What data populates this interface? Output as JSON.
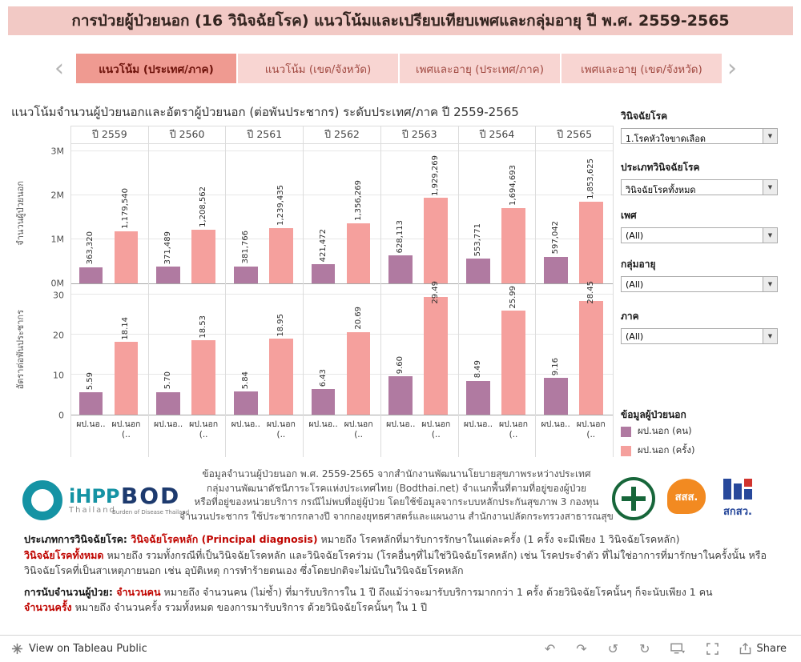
{
  "header": {
    "title": "การป่วยผู้ป่วยนอก (16 วินิจฉัยโรค) แนวโน้มและเปรียบเทียบเพศและกลุ่มอายุ ปี พ.ศ. 2559-2565"
  },
  "tabs": [
    {
      "name": "tab-trend-country",
      "label": "แนวโน้ม (ประเทศ/ภาค)",
      "active": true
    },
    {
      "name": "tab-trend-province",
      "label": "แนวโน้ม (เขต/จังหวัด)",
      "active": false
    },
    {
      "name": "tab-sex-age-country",
      "label": "เพศและอายุ (ประเทศ/ภาค)",
      "active": false
    },
    {
      "name": "tab-sex-age-province",
      "label": "เพศและอายุ (เขต/จังหวัด)",
      "active": false
    }
  ],
  "chart": {
    "title": "แนวโน้มจำนวนผู้ป่วยนอกและอัตราผู้ป่วยนอก (ต่อพันประชากร) ระดับประเทศ/ภาค ปี 2559-2565"
  },
  "chart_data": {
    "type": "bar",
    "categories": [
      "ปี 2559",
      "ปี 2560",
      "ปี 2561",
      "ปี 2562",
      "ปี 2563",
      "ปี 2564",
      "ปี 2565"
    ],
    "x_sublabels": [
      "ผป.นอ..",
      "ผป.นอก (.."
    ],
    "legend_position": "right",
    "grid": true,
    "panels": [
      {
        "ylabel": "จำนวนผู้ป่วยนอก",
        "yticks": [
          "3M",
          "2M",
          "1M",
          "0M"
        ],
        "ylim": [
          0,
          3000000
        ],
        "series": [
          {
            "name": "ผป.นอก (คน)",
            "values": [
              363320,
              371489,
              381766,
              421472,
              628113,
              553771,
              597042
            ],
            "labels": [
              "363,320",
              "371,489",
              "381,766",
              "421,472",
              "628,113",
              "553,771",
              "597,042"
            ]
          },
          {
            "name": "ผป.นอก (ครั้ง)",
            "values": [
              1179540,
              1208562,
              1239435,
              1356269,
              1929269,
              1694693,
              1853625
            ],
            "labels": [
              "1,179,540",
              "1,208,562",
              "1,239,435",
              "1,356,269",
              "1,929,269",
              "1,694,693",
              "1,853,625"
            ]
          }
        ]
      },
      {
        "ylabel": "อัตราต่อพันประชากร",
        "yticks": [
          "30",
          "20",
          "10",
          "0"
        ],
        "ylim": [
          0,
          30
        ],
        "series": [
          {
            "name": "ผป.นอก (คน)",
            "values": [
              5.59,
              5.7,
              5.84,
              6.43,
              9.6,
              8.49,
              9.16
            ],
            "labels": [
              "5.59",
              "5.70",
              "5.84",
              "6.43",
              "9.60",
              "8.49",
              "9.16"
            ]
          },
          {
            "name": "ผป.นอก (ครั้ง)",
            "values": [
              18.14,
              18.53,
              18.95,
              20.69,
              29.49,
              25.99,
              28.45
            ],
            "labels": [
              "18.14",
              "18.53",
              "18.95",
              "20.69",
              "29.49",
              "25.99",
              "28.45"
            ]
          }
        ]
      }
    ]
  },
  "filters": [
    {
      "name": "diagnosis-filter",
      "label": "วินิจฉัยโรค",
      "value": "1.โรคหัวใจขาดเลือด"
    },
    {
      "name": "diagnosis-type-filter",
      "label": "ประเภทวินิจฉัยโรค",
      "value": "วินิจฉัยโรคทั้งหมด"
    },
    {
      "name": "sex-filter",
      "label": "เพศ",
      "value": "(All)"
    },
    {
      "name": "age-group-filter",
      "label": "กลุ่มอายุ",
      "value": "(All)"
    },
    {
      "name": "region-filter",
      "label": "ภาค",
      "value": "(All)"
    }
  ],
  "legend": {
    "title": "ข้อมูลผู้ป่วยนอก",
    "items": [
      {
        "label": "ผป.นอก (คน)",
        "color": "#b07aa1"
      },
      {
        "label": "ผป.นอก (ครั้ง)",
        "color": "#f5a09d"
      }
    ]
  },
  "source_lines": [
    "ข้อมูลจำนวนผู้ป่วยนอก พ.ศ. 2559-2565 จากสำนักงานพัฒนานโยบายสุขภาพระหว่างประเทศ",
    "กลุ่มงานพัฒนาดัชนีภาระโรคแห่งประเทศไทย (Bodthai.net) จำแนกพื้นที่ตามที่อยู่ของผู้ป่วย",
    "หรือที่อยู่ของหน่วยบริการ กรณีไม่พบที่อยู่ผู้ป่วย โดยใช้ข้อมูลจากระบบหลักประกันสุขภาพ 3 กองทุน",
    "จำนวนประชากร ใช้ประชากรกลางปี จากกองยุทธศาสตร์และแผนงาน สำนักงานปลัดกระทรวงสาธารณสุข"
  ],
  "logos": {
    "ihpp_text": "iHPP",
    "ihpp_sub": "Thailand",
    "bod_text": "BOD",
    "bod_sub": "Burden of Disease Thailand",
    "sss_text": "สสส.",
    "tsri_text": "สกสว."
  },
  "footnotes": [
    {
      "segments": [
        {
          "t": "ประเภทการวินิจฉัยโรค: ",
          "s": "bold"
        },
        {
          "t": "วินิจฉัยโรคหลัก (Principal diagnosis)",
          "s": "red"
        },
        {
          "t": " หมายถึง โรคหลักที่มารับการรักษาในแต่ละครั้ง (1 ครั้ง จะมีเพียง 1 วินิจฉัยโรคหลัก)",
          "s": ""
        },
        {
          "br": true
        },
        {
          "t": "วินิจฉัยโรคทั้งหมด",
          "s": "red"
        },
        {
          "t": " หมายถึง รวมทั้งกรณีที่เป็นวินิจฉัยโรคหลัก และวินิจฉัยโรคร่วม (โรคอื่นๆที่ไม่ใช่วินิจฉัยโรคหลัก) เช่น โรคประจำตัว ที่ไม่ใช่อาการที่มารักษาในครั้งนั้น หรือ วินิจฉัยโรคที่เป็นสาเหตุภายนอก เช่น อุบัติเหตุ การทำร้ายตนเอง ซึ่งโดยปกติจะไม่นับในวินิจฉัยโรคหลัก",
          "s": ""
        }
      ]
    },
    {
      "segments": [
        {
          "t": "การนับจำนวนผู้ป่วย: ",
          "s": "bold"
        },
        {
          "t": "จำนวนคน",
          "s": "red"
        },
        {
          "t": " หมายถึง จำนวนคน (ไม่ซ้ำ) ที่มารับบริการใน 1 ปี ถึงแม้ว่าจะมารับบริการมากกว่า 1 ครั้ง ด้วยวินิจฉัยโรคนั้นๆ ก็จะนับเพียง 1 คน",
          "s": ""
        },
        {
          "br": true
        },
        {
          "t": "จำนวนครั้ง",
          "s": "red"
        },
        {
          "t": " หมายถึง จำนวนครั้ง รวมทั้งหมด ของการมารับบริการ ด้วยวินิจฉัยโรคนั้นๆ ใน 1 ปี",
          "s": ""
        }
      ]
    }
  ],
  "toolbar": {
    "view_label": "View on Tableau Public",
    "share_label": "Share",
    "icons": [
      "undo-icon",
      "redo-icon",
      "reset-icon",
      "refresh-icon",
      "device-preview-icon",
      "fullscreen-icon",
      "share-icon"
    ]
  }
}
